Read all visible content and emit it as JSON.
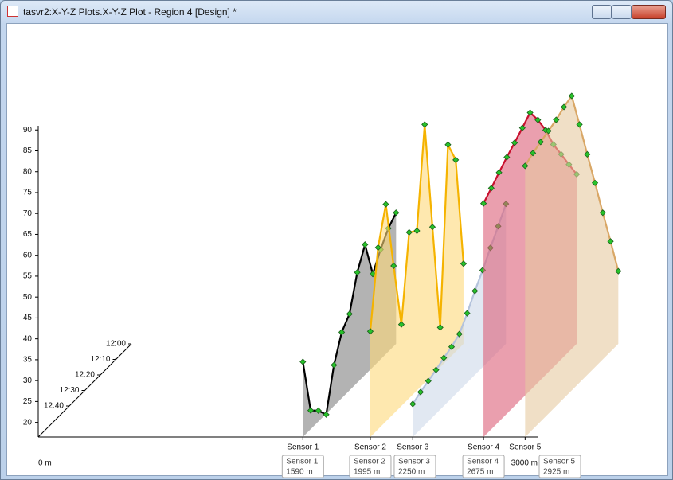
{
  "window": {
    "title": "tasvr2:X-Y-Z Plots.X-Y-Z Plot - Region 4 [Design] *"
  },
  "chart_data": {
    "type": "xyz",
    "xlim": [
      0,
      3000
    ],
    "xticks": [
      {
        "value": 0,
        "label": "0 m"
      },
      {
        "value": 3000,
        "label": "3000 m"
      }
    ],
    "ylim": [
      16.5,
      91
    ],
    "yticks": [
      20,
      25,
      30,
      35,
      40,
      45,
      50,
      55,
      60,
      65,
      70,
      75,
      80,
      85,
      90
    ],
    "zlim": [
      60,
      0
    ],
    "zticks": [
      {
        "value": 0,
        "label": "12:00"
      },
      {
        "value": 10,
        "label": "12:10"
      },
      {
        "value": 20,
        "label": "12:20"
      },
      {
        "value": 30,
        "label": "12:30"
      },
      {
        "value": 40,
        "label": "12:40"
      }
    ],
    "z": [
      60,
      55,
      50,
      45,
      40,
      35,
      30,
      25,
      20,
      15,
      10,
      5,
      0
    ],
    "series": [
      {
        "name": "Sensor 1",
        "x": 1590,
        "x_label": "1590 m",
        "color": "#000000",
        "fill": "#808080",
        "values": [
          34.5,
          21.0,
          19.1,
          16.3,
          26.3,
          32.3,
          34.8,
          42.9,
          47.7,
          38.8,
          42.8,
          46.0,
          47.9
        ]
      },
      {
        "name": "Sensor 2",
        "x": 1995,
        "x_label": "1995 m",
        "color": "#f5b300",
        "fill": "#fdd97a",
        "values": [
          41.8,
          60.0,
          68.5,
          51.9,
          36.0,
          56.2,
          54.7,
          78.3,
          51.9,
          26.0,
          67.9,
          62.4,
          35.7
        ]
      },
      {
        "name": "Sensor 3",
        "x": 2250,
        "x_label": "2250 m",
        "color": "#b4c3dc",
        "fill": "#cdd8ea",
        "values": [
          24.4,
          25.4,
          26.2,
          27.0,
          28.0,
          28.8,
          30.0,
          33.1,
          36.6,
          39.7,
          43.2,
          46.5,
          50.0
        ]
      },
      {
        "name": "Sensor 4",
        "x": 2675,
        "x_label": "2675 m",
        "color": "#c8102e",
        "fill": "#dc5f78",
        "values": [
          72.4,
          74.2,
          76.1,
          77.9,
          79.5,
          81.2,
          83.0,
          79.4,
          75.1,
          69.8,
          65.6,
          61.3,
          57.1
        ]
      },
      {
        "name": "Sensor 5",
        "x": 2925,
        "x_label": "2925 m",
        "color": "#d9a766",
        "fill": "#e6c9a0",
        "values": [
          81.4,
          82.6,
          83.4,
          84.2,
          85.0,
          86.2,
          87.0,
          78.3,
          69.3,
          60.6,
          51.6,
          42.9,
          33.9
        ]
      }
    ]
  }
}
